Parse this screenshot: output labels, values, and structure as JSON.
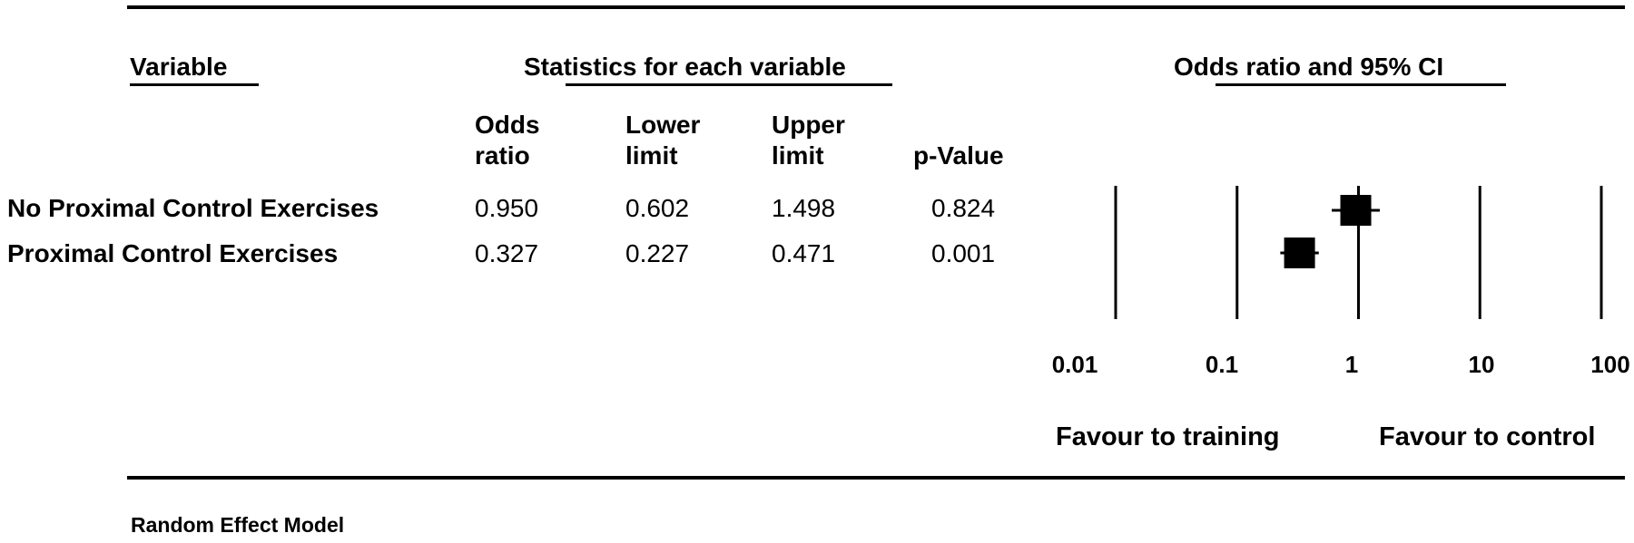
{
  "headers": {
    "variable": "Variable",
    "statistics": "Statistics for each variable",
    "odds_ci": "Odds ratio and 95% CI"
  },
  "columns": {
    "odds": [
      "Odds",
      "ratio"
    ],
    "lower": [
      "Lower",
      "limit"
    ],
    "upper": [
      "Upper",
      "limit"
    ],
    "p": "p-Value"
  },
  "rows": [
    {
      "label": "No Proximal Control Exercises",
      "odds": "0.950",
      "lower": "0.602",
      "upper": "1.498",
      "p": "0.824"
    },
    {
      "label": "Proximal Control Exercises",
      "odds": "0.327",
      "lower": "0.227",
      "upper": "0.471",
      "p": "0.001"
    }
  ],
  "chart_data": {
    "type": "forest",
    "scale": "log",
    "xlim": [
      0.01,
      100
    ],
    "ticks": [
      {
        "value": 0.01,
        "label": "0.01"
      },
      {
        "value": 0.1,
        "label": "0.1"
      },
      {
        "value": 1,
        "label": "1"
      },
      {
        "value": 10,
        "label": "10"
      },
      {
        "value": 100,
        "label": "100"
      }
    ],
    "points": [
      {
        "name": "No Proximal Control Exercises",
        "odds": 0.95,
        "lower": 0.602,
        "upper": 1.498
      },
      {
        "name": "Proximal Control Exercises",
        "odds": 0.327,
        "lower": 0.227,
        "upper": 0.471
      }
    ],
    "left_label": "Favour to training",
    "right_label": "Favour to control"
  },
  "footer": "Random Effect Model"
}
